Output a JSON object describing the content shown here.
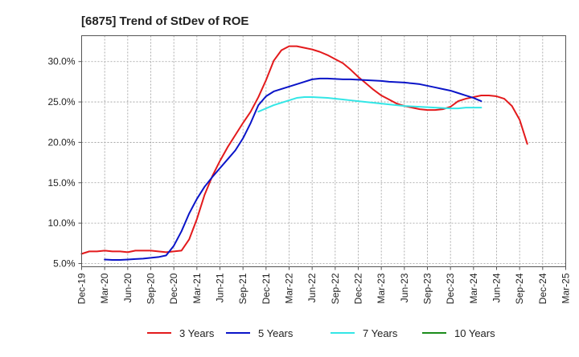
{
  "chart_data": {
    "type": "line",
    "title": "[6875]  Trend of StDev of ROE",
    "xlabel": "",
    "ylabel": "",
    "x_ticks": [
      "Dec-19",
      "Mar-20",
      "Jun-20",
      "Sep-20",
      "Dec-20",
      "Mar-21",
      "Jun-21",
      "Sep-21",
      "Dec-21",
      "Mar-22",
      "Jun-22",
      "Sep-22",
      "Dec-22",
      "Mar-23",
      "Jun-23",
      "Sep-23",
      "Dec-23",
      "Mar-24",
      "Jun-24",
      "Sep-24",
      "Dec-24",
      "Mar-25"
    ],
    "y_ticks": [
      {
        "value": 5,
        "label": "5.0%"
      },
      {
        "value": 10,
        "label": "10.0%"
      },
      {
        "value": 15,
        "label": "15.0%"
      },
      {
        "value": 20,
        "label": "20.0%"
      },
      {
        "value": 25,
        "label": "25.0%"
      },
      {
        "value": 30,
        "label": "30.0%"
      }
    ],
    "ylim": [
      4.6,
      33.2
    ],
    "grid": true,
    "legend_position": "bottom",
    "series": [
      {
        "name": "3 Years",
        "color": "#e31a1c",
        "points": [
          [
            0,
            6.2
          ],
          [
            1,
            6.5
          ],
          [
            2,
            6.5
          ],
          [
            3,
            6.6
          ],
          [
            4,
            6.5
          ],
          [
            5,
            6.5
          ],
          [
            6,
            6.4
          ],
          [
            7,
            6.6
          ],
          [
            8,
            6.6
          ],
          [
            9,
            6.6
          ],
          [
            10,
            6.5
          ],
          [
            11,
            6.4
          ],
          [
            12,
            6.5
          ],
          [
            13,
            6.6
          ],
          [
            14,
            8.0
          ],
          [
            15,
            10.5
          ],
          [
            16,
            13.5
          ],
          [
            17,
            15.8
          ],
          [
            18,
            17.7
          ],
          [
            19,
            19.4
          ],
          [
            20,
            20.9
          ],
          [
            21,
            22.4
          ],
          [
            22,
            23.8
          ],
          [
            23,
            25.6
          ],
          [
            24,
            27.7
          ],
          [
            25,
            30.1
          ],
          [
            26,
            31.4
          ],
          [
            27,
            31.9
          ],
          [
            28,
            31.9
          ],
          [
            29,
            31.7
          ],
          [
            30,
            31.5
          ],
          [
            31,
            31.2
          ],
          [
            32,
            30.8
          ],
          [
            33,
            30.3
          ],
          [
            34,
            29.8
          ],
          [
            35,
            29.0
          ],
          [
            36,
            28.1
          ],
          [
            37,
            27.3
          ],
          [
            38,
            26.5
          ],
          [
            39,
            25.8
          ],
          [
            40,
            25.3
          ],
          [
            41,
            24.8
          ],
          [
            42,
            24.5
          ],
          [
            43,
            24.3
          ],
          [
            44,
            24.1
          ],
          [
            45,
            24.0
          ],
          [
            46,
            24.0
          ],
          [
            47,
            24.1
          ],
          [
            48,
            24.4
          ],
          [
            49,
            25.1
          ],
          [
            50,
            25.4
          ],
          [
            51,
            25.6
          ],
          [
            52,
            25.8
          ],
          [
            53,
            25.8
          ],
          [
            54,
            25.7
          ],
          [
            55,
            25.4
          ],
          [
            56,
            24.5
          ],
          [
            57,
            22.8
          ],
          [
            58,
            19.8
          ]
        ]
      },
      {
        "name": "5 Years",
        "color": "#0a14c8",
        "points": [
          [
            3,
            5.5
          ],
          [
            4,
            5.45
          ],
          [
            5,
            5.45
          ],
          [
            6,
            5.5
          ],
          [
            7,
            5.55
          ],
          [
            8,
            5.6
          ],
          [
            9,
            5.7
          ],
          [
            10,
            5.8
          ],
          [
            11,
            6.0
          ],
          [
            12,
            7.2
          ],
          [
            13,
            9.0
          ],
          [
            14,
            11.2
          ],
          [
            15,
            13.0
          ],
          [
            16,
            14.5
          ],
          [
            17,
            15.7
          ],
          [
            18,
            16.8
          ],
          [
            19,
            17.9
          ],
          [
            20,
            19.0
          ],
          [
            21,
            20.5
          ],
          [
            22,
            22.4
          ],
          [
            23,
            24.6
          ],
          [
            24,
            25.7
          ],
          [
            25,
            26.3
          ],
          [
            26,
            26.6
          ],
          [
            27,
            26.9
          ],
          [
            28,
            27.2
          ],
          [
            29,
            27.5
          ],
          [
            30,
            27.8
          ],
          [
            31,
            27.9
          ],
          [
            32,
            27.9
          ],
          [
            33,
            27.85
          ],
          [
            34,
            27.8
          ],
          [
            35,
            27.8
          ],
          [
            36,
            27.75
          ],
          [
            37,
            27.7
          ],
          [
            38,
            27.65
          ],
          [
            39,
            27.6
          ],
          [
            40,
            27.5
          ],
          [
            41,
            27.45
          ],
          [
            42,
            27.4
          ],
          [
            43,
            27.3
          ],
          [
            44,
            27.2
          ],
          [
            45,
            27.0
          ],
          [
            46,
            26.8
          ],
          [
            47,
            26.6
          ],
          [
            48,
            26.4
          ],
          [
            49,
            26.1
          ],
          [
            50,
            25.8
          ],
          [
            51,
            25.5
          ],
          [
            52,
            25.1
          ]
        ]
      },
      {
        "name": "7 Years",
        "color": "#33e6e6",
        "points": [
          [
            23,
            23.8
          ],
          [
            24,
            24.2
          ],
          [
            25,
            24.6
          ],
          [
            26,
            24.9
          ],
          [
            27,
            25.2
          ],
          [
            28,
            25.5
          ],
          [
            29,
            25.6
          ],
          [
            30,
            25.6
          ],
          [
            31,
            25.55
          ],
          [
            32,
            25.5
          ],
          [
            33,
            25.4
          ],
          [
            34,
            25.3
          ],
          [
            35,
            25.2
          ],
          [
            36,
            25.1
          ],
          [
            37,
            25.0
          ],
          [
            38,
            24.9
          ],
          [
            39,
            24.8
          ],
          [
            40,
            24.7
          ],
          [
            41,
            24.6
          ],
          [
            42,
            24.5
          ],
          [
            43,
            24.45
          ],
          [
            44,
            24.4
          ],
          [
            45,
            24.35
          ],
          [
            46,
            24.3
          ],
          [
            47,
            24.25
          ],
          [
            48,
            24.2
          ],
          [
            49,
            24.2
          ],
          [
            50,
            24.3
          ],
          [
            51,
            24.3
          ],
          [
            52,
            24.3
          ]
        ]
      },
      {
        "name": "10 Years",
        "color": "#1a8c1a",
        "points": []
      }
    ]
  }
}
